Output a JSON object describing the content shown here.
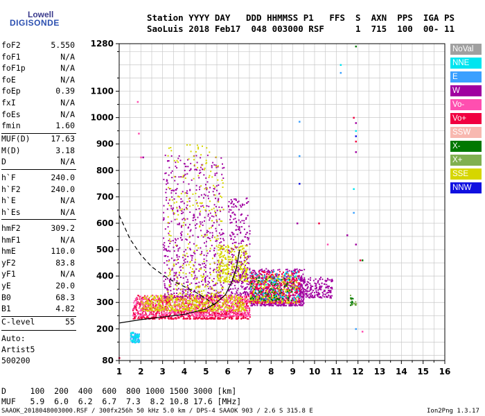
{
  "logo": {
    "line1": "Lowell",
    "line2": "DIGISONDE"
  },
  "header": {
    "line1": "Station YYYY DAY   DDD HHMMSS P1   FFS  S  AXN  PPS  IGA PS",
    "line2": "SaoLuis 2018 Feb17  048 003000 RSF      1  715  100  00- 11"
  },
  "params": {
    "group1": [
      {
        "name": "foF2",
        "value": "5.550"
      },
      {
        "name": "foF1",
        "value": "N/A"
      },
      {
        "name": "foF1p",
        "value": "N/A"
      },
      {
        "name": "foE",
        "value": "N/A"
      },
      {
        "name": "foEp",
        "value": "0.39"
      },
      {
        "name": "fxI",
        "value": "N/A"
      },
      {
        "name": "foEs",
        "value": "N/A"
      },
      {
        "name": "fmin",
        "value": "1.60"
      }
    ],
    "group2": [
      {
        "name": "MUF(D)",
        "value": "17.63"
      },
      {
        "name": "M(D)",
        "value": "3.18"
      },
      {
        "name": "D",
        "value": "N/A"
      }
    ],
    "group3": [
      {
        "name": "h`F",
        "value": "240.0"
      },
      {
        "name": "h`F2",
        "value": "240.0"
      },
      {
        "name": "h`E",
        "value": "N/A"
      },
      {
        "name": "h`Es",
        "value": "N/A"
      }
    ],
    "group4": [
      {
        "name": "hmF2",
        "value": "309.2"
      },
      {
        "name": "hmF1",
        "value": "N/A"
      },
      {
        "name": "hmE",
        "value": "110.0"
      },
      {
        "name": "yF2",
        "value": "83.8"
      },
      {
        "name": "yF1",
        "value": "N/A"
      },
      {
        "name": "yE",
        "value": "20.0"
      },
      {
        "name": "B0",
        "value": "68.3"
      },
      {
        "name": "B1",
        "value": "4.82"
      }
    ],
    "clevel": {
      "name": "C-level",
      "value": "55"
    },
    "auto": [
      "Auto:",
      "Artist5",
      "500200"
    ]
  },
  "legend": [
    {
      "label": "NoVal",
      "color": "#a0a0a0"
    },
    {
      "label": "NNE",
      "color": "#00e5f0"
    },
    {
      "label": "E",
      "color": "#3aa0ff"
    },
    {
      "label": "W",
      "color": "#a000a0"
    },
    {
      "label": "Vo-",
      "color": "#ff4fb0"
    },
    {
      "label": "Vo+",
      "color": "#f00040"
    },
    {
      "label": "SSW",
      "color": "#f8b8b0"
    },
    {
      "label": "X-",
      "color": "#007800"
    },
    {
      "label": "X+",
      "color": "#80b050"
    },
    {
      "label": "SSE",
      "color": "#d6d600"
    },
    {
      "label": "NNW",
      "color": "#1010e0"
    }
  ],
  "bottom": {
    "line1": "D     100  200  400  600  800 1000 1500 3000 [km]",
    "line2": "MUF   5.9  6.0  6.2  6.7  7.3  8.2 10.8 17.6 [MHz]"
  },
  "footer": {
    "left": "SAAOK_2018048003000.RSF / 300fx256h 50 kHz 5.0 km / DPS-4 SAAOK 903 / 2.6 S 315.8 E",
    "right": "Ion2Png 1.3.17"
  },
  "chart_data": {
    "type": "scatter",
    "title": "",
    "xlabel": "",
    "ylabel": "",
    "xlim": [
      1,
      16
    ],
    "ylim": [
      80,
      1280
    ],
    "xticks": [
      1,
      2,
      3,
      4,
      5,
      6,
      7,
      8,
      9,
      10,
      11,
      12,
      13,
      14,
      15,
      16
    ],
    "yticks": [
      80,
      200,
      300,
      400,
      500,
      600,
      700,
      800,
      900,
      1000,
      1100,
      1280
    ],
    "grid": true,
    "profile_solid": {
      "name": "",
      "x": [
        1.0,
        2.0,
        3.0,
        4.0,
        5.0,
        5.5,
        5.9,
        6.2,
        6.4,
        6.55
      ],
      "y": [
        222,
        235,
        245,
        255,
        275,
        300,
        330,
        380,
        430,
        500
      ]
    },
    "profile_dashed": {
      "name": "",
      "x": [
        1.0,
        1.5,
        2.0,
        2.5,
        3.0,
        3.5,
        4.0,
        4.5,
        5.0,
        5.4
      ],
      "y": [
        630,
        540,
        480,
        435,
        405,
        380,
        360,
        340,
        315,
        290
      ]
    },
    "echo_clusters": [
      {
        "legend": "Vo+",
        "x_range": [
          1.6,
          7.0
        ],
        "y_range": [
          240,
          330
        ],
        "n": 900
      },
      {
        "legend": "Vo-",
        "x_range": [
          1.6,
          7.0
        ],
        "y_range": [
          250,
          330
        ],
        "n": 500
      },
      {
        "legend": "SSE",
        "x_range": [
          2.0,
          6.8
        ],
        "y_range": [
          270,
          330
        ],
        "n": 450
      },
      {
        "legend": "W",
        "x_range": [
          3.0,
          5.8
        ],
        "y_range": [
          320,
          860
        ],
        "n": 600
      },
      {
        "legend": "SSE",
        "x_range": [
          3.2,
          5.8
        ],
        "y_range": [
          330,
          900
        ],
        "n": 250
      },
      {
        "legend": "SSE",
        "x_range": [
          5.5,
          6.9
        ],
        "y_range": [
          380,
          520
        ],
        "n": 300
      },
      {
        "legend": "W",
        "x_range": [
          6.0,
          7.0
        ],
        "y_range": [
          330,
          700
        ],
        "n": 250
      },
      {
        "legend": "W",
        "x_range": [
          7.0,
          9.5
        ],
        "y_range": [
          290,
          430
        ],
        "n": 700
      },
      {
        "legend": "Vo+",
        "x_range": [
          7.0,
          9.3
        ],
        "y_range": [
          300,
          420
        ],
        "n": 350
      },
      {
        "legend": "NNE",
        "x_range": [
          7.0,
          9.3
        ],
        "y_range": [
          310,
          420
        ],
        "n": 120
      },
      {
        "legend": "SSE",
        "x_range": [
          7.0,
          9.2
        ],
        "y_range": [
          300,
          410
        ],
        "n": 150
      },
      {
        "legend": "X-",
        "x_range": [
          7.0,
          9.0
        ],
        "y_range": [
          310,
          400
        ],
        "n": 80
      },
      {
        "legend": "W",
        "x_range": [
          9.3,
          10.8
        ],
        "y_range": [
          320,
          400
        ],
        "n": 200
      },
      {
        "legend": "E",
        "x_range": [
          1.5,
          1.9
        ],
        "y_range": [
          150,
          190
        ],
        "n": 60
      },
      {
        "legend": "NNE",
        "x_range": [
          1.5,
          1.9
        ],
        "y_range": [
          150,
          190
        ],
        "n": 40
      },
      {
        "legend": "X-",
        "x_range": [
          11.6,
          11.9
        ],
        "y_range": [
          280,
          340
        ],
        "n": 12
      },
      {
        "legend": "X+",
        "x_range": [
          11.6,
          11.9
        ],
        "y_range": [
          290,
          330
        ],
        "n": 8
      }
    ],
    "sparse_points": [
      {
        "legend": "X-",
        "x": 11.9,
        "y": 1270
      },
      {
        "legend": "NNE",
        "x": 11.2,
        "y": 1200
      },
      {
        "legend": "E",
        "x": 11.2,
        "y": 1170
      },
      {
        "legend": "Vo+",
        "x": 11.8,
        "y": 1000
      },
      {
        "legend": "W",
        "x": 11.9,
        "y": 980
      },
      {
        "legend": "NNE",
        "x": 11.9,
        "y": 950
      },
      {
        "legend": "E",
        "x": 9.3,
        "y": 985
      },
      {
        "legend": "NNW",
        "x": 11.9,
        "y": 930
      },
      {
        "legend": "Vo+",
        "x": 11.9,
        "y": 910
      },
      {
        "legend": "W",
        "x": 11.9,
        "y": 870
      },
      {
        "legend": "E",
        "x": 9.3,
        "y": 855
      },
      {
        "legend": "NNW",
        "x": 9.3,
        "y": 750
      },
      {
        "legend": "NNE",
        "x": 11.8,
        "y": 730
      },
      {
        "legend": "E",
        "x": 11.8,
        "y": 640
      },
      {
        "legend": "W",
        "x": 11.5,
        "y": 555
      },
      {
        "legend": "W",
        "x": 11.9,
        "y": 520
      },
      {
        "legend": "Vo+",
        "x": 12.1,
        "y": 460
      },
      {
        "legend": "W",
        "x": 9.2,
        "y": 600
      },
      {
        "legend": "Vo+",
        "x": 10.2,
        "y": 600
      },
      {
        "legend": "Vo-",
        "x": 10.6,
        "y": 520
      },
      {
        "legend": "X-",
        "x": 12.2,
        "y": 460
      },
      {
        "legend": "Vo-",
        "x": 12.2,
        "y": 190
      },
      {
        "legend": "E",
        "x": 11.9,
        "y": 200
      },
      {
        "legend": "Vo-",
        "x": 1.85,
        "y": 1060
      },
      {
        "legend": "Vo-",
        "x": 1.9,
        "y": 940
      },
      {
        "legend": "Vo-",
        "x": 2.0,
        "y": 850
      },
      {
        "legend": "W",
        "x": 2.1,
        "y": 850
      },
      {
        "legend": "Vo+",
        "x": 1.0,
        "y": 90
      }
    ]
  }
}
